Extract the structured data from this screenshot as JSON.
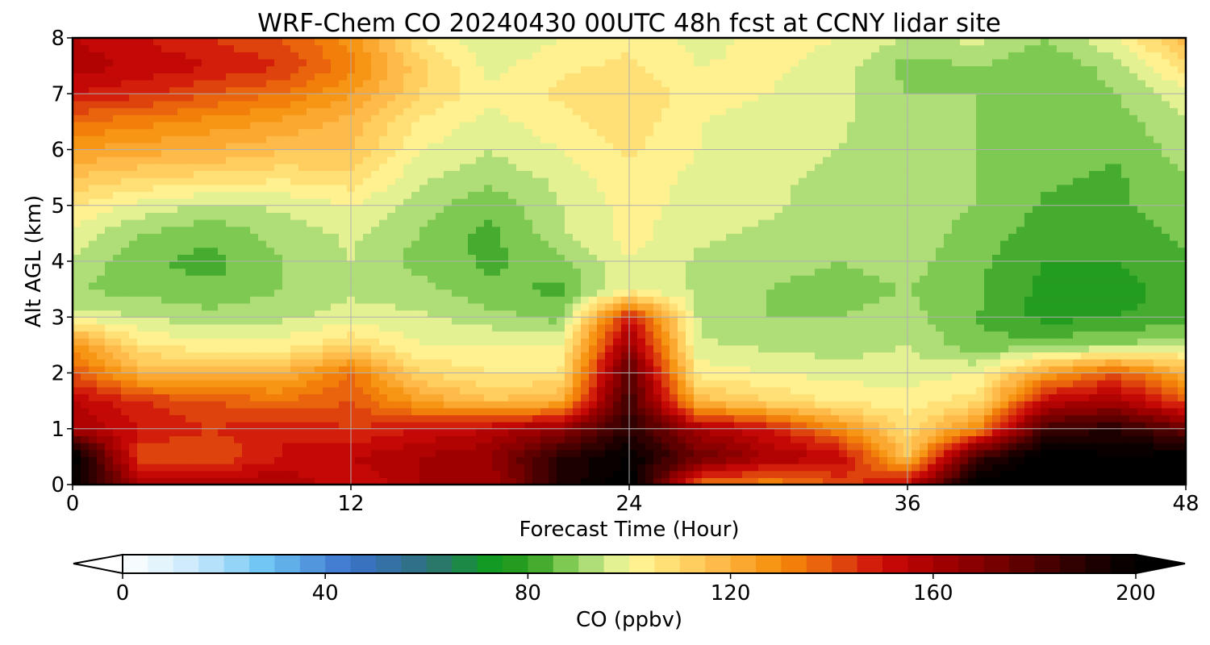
{
  "chart_data": {
    "type": "heatmap",
    "title": "WRF-Chem CO  20240430 00UTC 48h fcst at CCNY lidar site",
    "xlabel": "Forecast Time (Hour)",
    "ylabel": "Alt AGL (km)",
    "xlim": [
      0,
      48
    ],
    "ylim": [
      0,
      8
    ],
    "xticks": [
      0,
      12,
      24,
      36,
      48
    ],
    "yticks": [
      0,
      1,
      2,
      3,
      4,
      5,
      6,
      7,
      8
    ],
    "grid": true,
    "colorbar": {
      "label": "CO  (ppbv)",
      "ticks": [
        0,
        40,
        80,
        120,
        160,
        200
      ],
      "range": [
        0,
        200
      ],
      "extend": "both",
      "orientation": "horizontal",
      "colors": [
        {
          "v": 0,
          "c": "#ffffff"
        },
        {
          "v": 15,
          "c": "#c6e8fb"
        },
        {
          "v": 28,
          "c": "#6ec5f4"
        },
        {
          "v": 45,
          "c": "#3b72cc"
        },
        {
          "v": 60,
          "c": "#2f6f7c"
        },
        {
          "v": 72,
          "c": "#109a25"
        },
        {
          "v": 80,
          "c": "#2b9d1d"
        },
        {
          "v": 88,
          "c": "#82cc55"
        },
        {
          "v": 95,
          "c": "#c8e78a"
        },
        {
          "v": 100,
          "c": "#fffa9c"
        },
        {
          "v": 110,
          "c": "#ffd76a"
        },
        {
          "v": 120,
          "c": "#fdb13f"
        },
        {
          "v": 130,
          "c": "#f58d07"
        },
        {
          "v": 140,
          "c": "#e5560f"
        },
        {
          "v": 150,
          "c": "#cc0b08"
        },
        {
          "v": 160,
          "c": "#a80000"
        },
        {
          "v": 175,
          "c": "#6b0000"
        },
        {
          "v": 190,
          "c": "#250000"
        },
        {
          "v": 200,
          "c": "#000000"
        }
      ]
    },
    "x": [
      0,
      3,
      6,
      9,
      12,
      15,
      18,
      21,
      24,
      27,
      30,
      33,
      36,
      39,
      42,
      45,
      48
    ],
    "y": [
      0,
      0.5,
      1,
      1.5,
      2,
      2.5,
      3,
      3.5,
      4,
      4.5,
      5,
      5.5,
      6,
      6.5,
      7,
      7.5,
      8
    ],
    "z": [
      [
        200,
        160,
        160,
        160,
        150,
        160,
        160,
        190,
        205,
        135,
        130,
        140,
        155,
        205,
        205,
        205,
        200
      ],
      [
        205,
        140,
        140,
        150,
        155,
        160,
        165,
        190,
        200,
        175,
        160,
        155,
        115,
        185,
        205,
        200,
        205
      ],
      [
        160,
        150,
        145,
        150,
        145,
        150,
        155,
        165,
        190,
        160,
        150,
        130,
        108,
        130,
        185,
        190,
        175
      ],
      [
        155,
        145,
        140,
        135,
        140,
        125,
        115,
        120,
        185,
        118,
        110,
        104,
        102,
        108,
        155,
        160,
        140
      ],
      [
        140,
        120,
        118,
        120,
        135,
        110,
        105,
        105,
        180,
        103,
        100,
        98,
        98,
        100,
        125,
        140,
        120
      ],
      [
        130,
        105,
        102,
        102,
        110,
        100,
        100,
        100,
        165,
        96,
        94,
        92,
        95,
        86,
        88,
        90,
        95
      ],
      [
        98,
        95,
        92,
        94,
        97,
        96,
        92,
        88,
        150,
        94,
        90,
        90,
        92,
        85,
        78,
        80,
        82
      ],
      [
        90,
        88,
        86,
        90,
        94,
        92,
        86,
        84,
        100,
        94,
        90,
        88,
        90,
        86,
        78,
        78,
        82
      ],
      [
        94,
        86,
        83,
        90,
        95,
        88,
        84,
        88,
        100,
        94,
        92,
        90,
        92,
        86,
        80,
        80,
        84
      ],
      [
        98,
        90,
        86,
        92,
        96,
        90,
        83,
        94,
        102,
        96,
        94,
        92,
        93,
        88,
        82,
        82,
        86
      ],
      [
        105,
        98,
        94,
        96,
        100,
        92,
        86,
        95,
        102,
        98,
        96,
        92,
        92,
        90,
        84,
        84,
        88
      ],
      [
        115,
        110,
        108,
        106,
        108,
        96,
        92,
        96,
        104,
        98,
        96,
        94,
        92,
        90,
        86,
        84,
        90
      ],
      [
        125,
        122,
        120,
        116,
        115,
        100,
        95,
        100,
        106,
        100,
        97,
        95,
        92,
        90,
        86,
        86,
        92
      ],
      [
        135,
        132,
        128,
        124,
        118,
        104,
        98,
        103,
        108,
        100,
        98,
        96,
        91,
        90,
        87,
        88,
        94
      ],
      [
        150,
        146,
        140,
        135,
        125,
        110,
        102,
        106,
        110,
        102,
        100,
        97,
        90,
        90,
        88,
        90,
        98
      ],
      [
        158,
        154,
        150,
        145,
        132,
        112,
        98,
        104,
        106,
        100,
        101,
        98,
        88,
        90,
        86,
        92,
        108
      ],
      [
        155,
        150,
        145,
        140,
        128,
        105,
        95,
        100,
        104,
        98,
        102,
        100,
        95,
        96,
        90,
        100,
        118
      ]
    ]
  }
}
